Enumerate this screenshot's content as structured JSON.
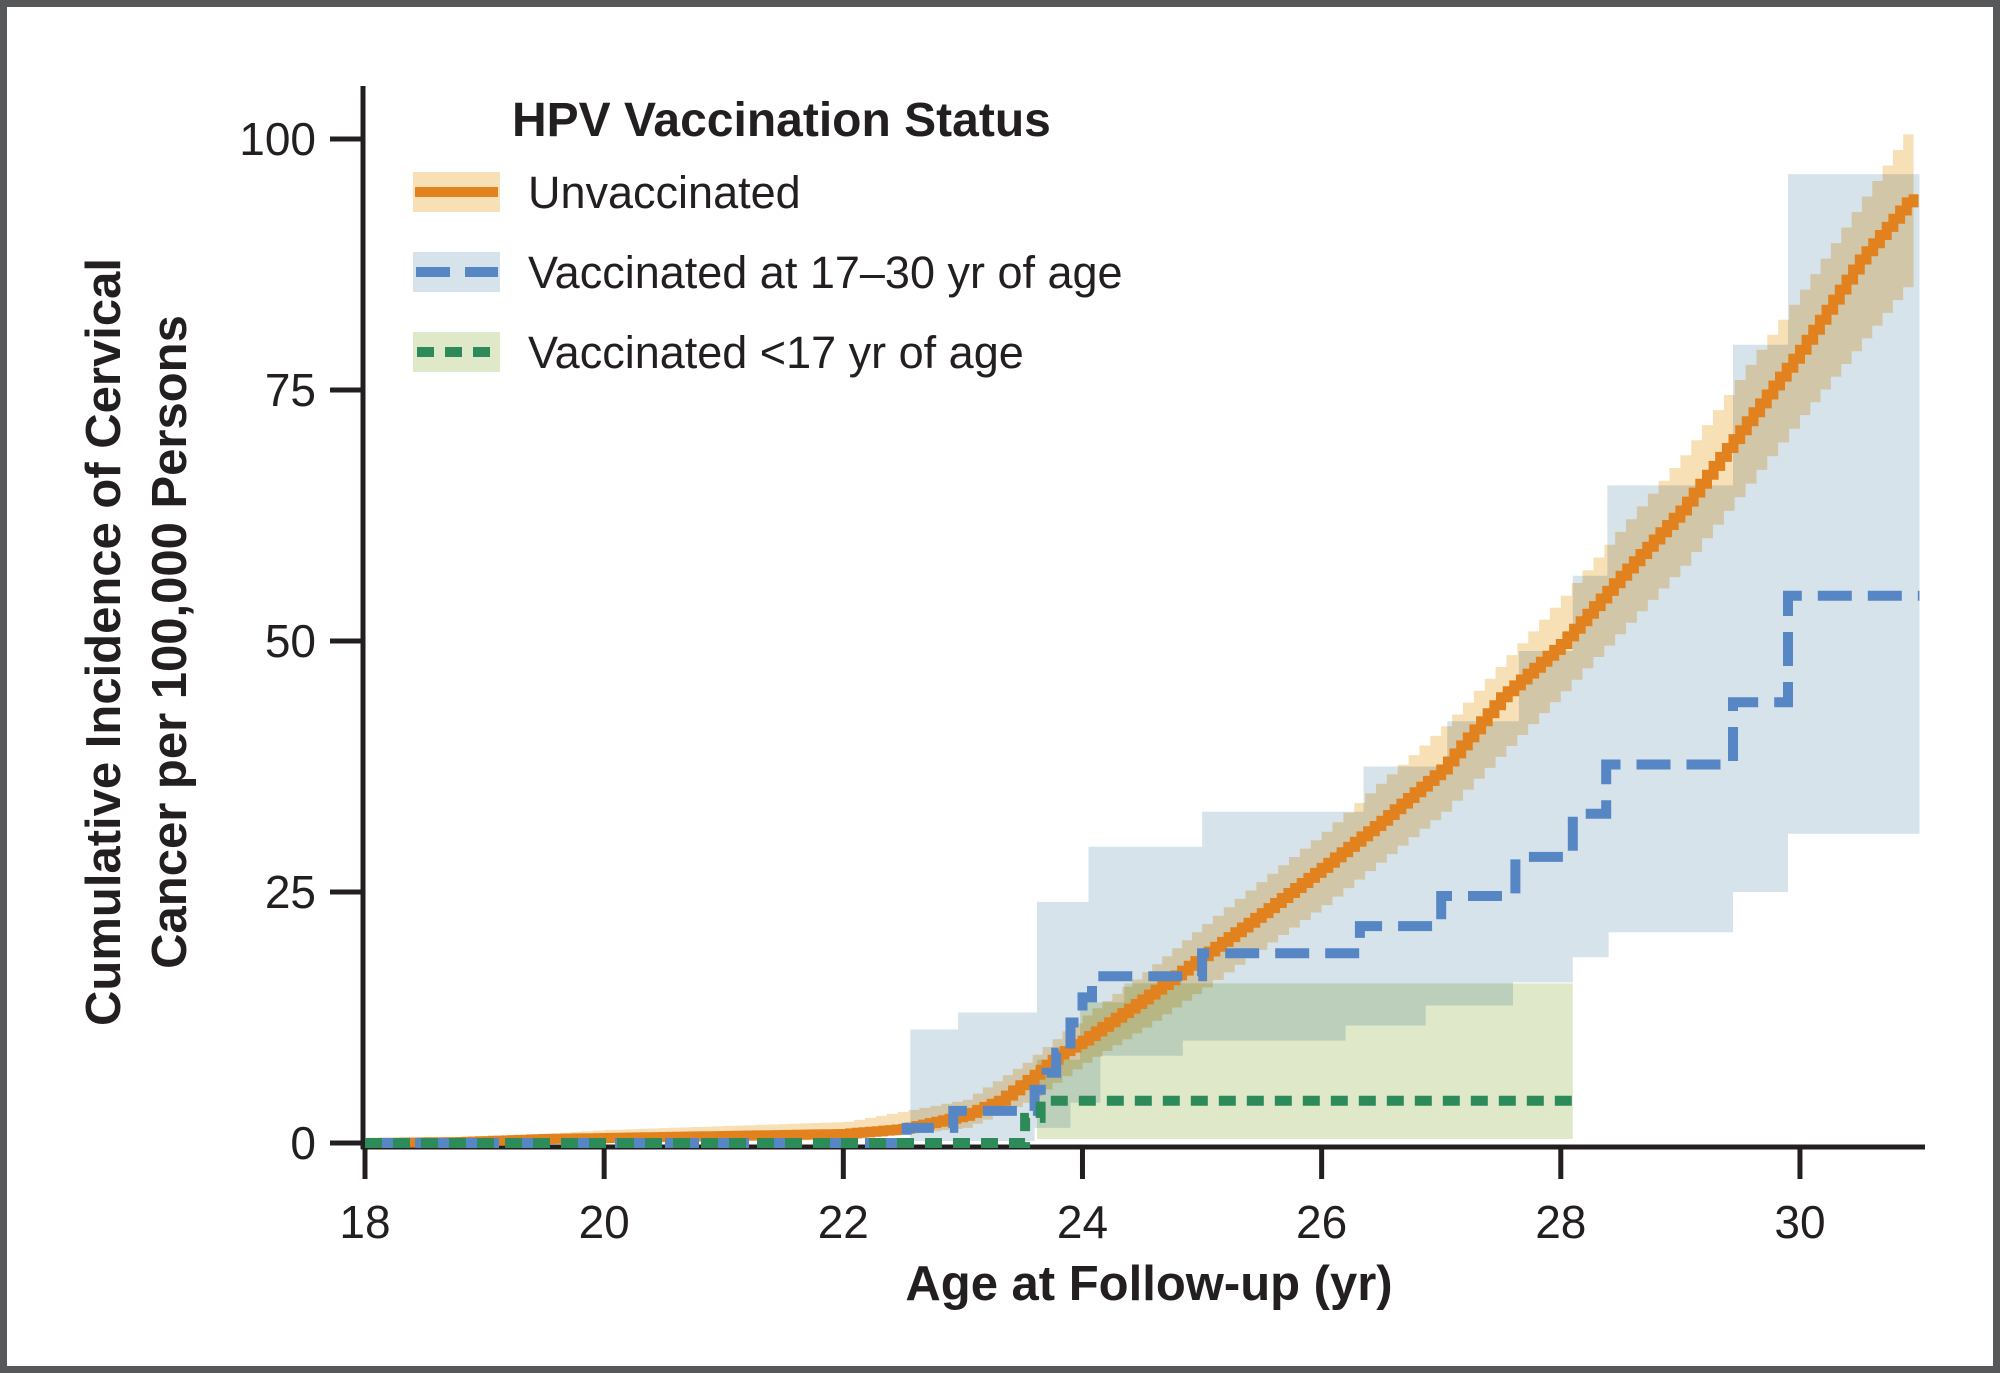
{
  "figure": {
    "legend": {
      "title": "HPV Vaccination Status",
      "items": [
        {
          "label": "Unvaccinated"
        },
        {
          "label": "Vaccinated at 17–30 yr of age"
        },
        {
          "label": "Vaccinated <17 yr of age"
        }
      ]
    },
    "x_axis": {
      "title": "Age at Follow-up (yr)",
      "ticks": [
        "18",
        "20",
        "22",
        "24",
        "26",
        "28",
        "30"
      ],
      "tick_values": [
        18,
        20,
        22,
        24,
        26,
        28,
        30
      ]
    },
    "y_axis": {
      "title_line1": "Cumulative Incidence of Cervical",
      "title_line2": "Cancer per 100,000 Persons",
      "ticks": [
        "0",
        "25",
        "50",
        "75",
        "100"
      ],
      "tick_values": [
        0,
        25,
        50,
        75,
        100
      ]
    }
  },
  "colors": {
    "text": "#231f20",
    "axis": "#231f20",
    "frame_border": "#57585a",
    "unvaccinated_line": "#e2821f",
    "unvaccinated_band": "#f8e0b6",
    "vaccinated_17_30_line": "#5786c5",
    "vaccinated_17_30_band": "#d7e3eb",
    "vaccinated_under17_line": "#2d8b59",
    "vaccinated_under17_band": "#dfe9ca"
  },
  "chart_data": {
    "type": "line",
    "title": "",
    "xlabel": "Age at Follow-up (yr)",
    "ylabel": "Cumulative Incidence of Cervical Cancer per 100,000 Persons",
    "xlim": [
      18,
      31
    ],
    "ylim": [
      0,
      100
    ],
    "grid": false,
    "legend_position": "top-left",
    "series": [
      {
        "name": "Unvaccinated",
        "render": "smooth-km",
        "line_style": "solid",
        "color_key": "unvaccinated_line",
        "band_key": "unvaccinated_band",
        "points": [
          [
            18,
            0
          ],
          [
            18.8,
            0.1
          ],
          [
            19.5,
            0.4
          ],
          [
            20,
            0.5
          ],
          [
            21,
            0.7
          ],
          [
            22,
            0.9
          ],
          [
            22.5,
            1.4
          ],
          [
            23,
            2.7
          ],
          [
            23.3,
            4.2
          ],
          [
            23.6,
            6.8
          ],
          [
            23.8,
            8.8
          ],
          [
            24,
            10.2
          ],
          [
            24.5,
            14.3
          ],
          [
            25,
            18.6
          ],
          [
            25.5,
            22.9
          ],
          [
            26,
            27.4
          ],
          [
            26.5,
            32.1
          ],
          [
            27,
            37.2
          ],
          [
            27.5,
            44.4
          ],
          [
            28,
            49.7
          ],
          [
            28.5,
            56.5
          ],
          [
            29,
            63
          ],
          [
            29.5,
            71
          ],
          [
            30,
            79
          ],
          [
            30.5,
            88
          ],
          [
            30.95,
            94.5
          ]
        ],
        "ci_upper": [
          [
            18.8,
            0.4
          ],
          [
            20,
            1.3
          ],
          [
            22,
            2.1
          ],
          [
            23,
            4.3
          ],
          [
            23.5,
            8
          ],
          [
            24,
            12.7
          ],
          [
            24.5,
            17
          ],
          [
            25,
            21.8
          ],
          [
            26,
            31
          ],
          [
            27,
            41.5
          ],
          [
            28,
            54.5
          ],
          [
            29,
            68.5
          ],
          [
            30,
            85
          ],
          [
            30.95,
            102
          ]
        ],
        "ci_lower": [
          [
            18.8,
            0.0
          ],
          [
            20,
            0.1
          ],
          [
            22,
            0.3
          ],
          [
            23,
            1.5
          ],
          [
            23.5,
            4
          ],
          [
            24,
            8
          ],
          [
            24.5,
            11.5
          ],
          [
            25,
            15.5
          ],
          [
            26,
            23.7
          ],
          [
            27,
            33
          ],
          [
            28,
            45
          ],
          [
            29,
            57.5
          ],
          [
            30,
            72.5
          ],
          [
            30.95,
            86.5
          ]
        ]
      },
      {
        "name": "Vaccinated at 17–30 yr of age",
        "render": "step",
        "line_style": "dashed",
        "color_key": "vaccinated_17_30_line",
        "band_key": "vaccinated_17_30_band",
        "points": [
          [
            18,
            0
          ],
          [
            22.53,
            1.5
          ],
          [
            22.92,
            3.2
          ],
          [
            23.6,
            5.3
          ],
          [
            23.7,
            7.0
          ],
          [
            23.78,
            9.0
          ],
          [
            23.9,
            12.0
          ],
          [
            24.0,
            14.5
          ],
          [
            24.08,
            16.6
          ],
          [
            25.0,
            18.9
          ],
          [
            26.32,
            21.6
          ],
          [
            27.0,
            24.6
          ],
          [
            27.62,
            28.5
          ],
          [
            28.1,
            32.8
          ],
          [
            28.38,
            37.7
          ],
          [
            29.44,
            43.9
          ],
          [
            29.9,
            54.5
          ],
          [
            31.0,
            54.5
          ]
        ],
        "ci_upper": [
          [
            22.56,
            11.3
          ],
          [
            22.96,
            13.0
          ],
          [
            23.62,
            24.0
          ],
          [
            24.05,
            29.5
          ],
          [
            25.0,
            33.0
          ],
          [
            26.35,
            37.5
          ],
          [
            27.05,
            42.0
          ],
          [
            27.65,
            49.0
          ],
          [
            28.1,
            56.5
          ],
          [
            28.39,
            65.5
          ],
          [
            29.44,
            79.5
          ],
          [
            29.9,
            96.5
          ],
          [
            31.0,
            96.5
          ]
        ],
        "ci_lower": [
          [
            22.56,
            0.2
          ],
          [
            23.6,
            1.5
          ],
          [
            23.9,
            4.0
          ],
          [
            24.15,
            8.7
          ],
          [
            24.84,
            10.2
          ],
          [
            26.2,
            11.7
          ],
          [
            26.87,
            13.7
          ],
          [
            27.6,
            16.0
          ],
          [
            28.1,
            18.5
          ],
          [
            28.4,
            21.0
          ],
          [
            29.44,
            25.0
          ],
          [
            29.9,
            30.8
          ],
          [
            31.0,
            30.8
          ]
        ]
      },
      {
        "name": "Vaccinated <17 yr of age",
        "render": "step",
        "line_style": "dotted",
        "color_key": "vaccinated_under17_line",
        "band_key": "vaccinated_under17_band",
        "points": [
          [
            18,
            0
          ],
          [
            23.52,
            2.5
          ],
          [
            23.65,
            4.2
          ],
          [
            28.1,
            4.2
          ]
        ],
        "ci_upper": [
          [
            23.62,
            8.3
          ],
          [
            23.98,
            14.0
          ],
          [
            24.35,
            15.9
          ],
          [
            28.1,
            15.9
          ]
        ],
        "ci_lower": [
          [
            23.62,
            0.4
          ],
          [
            28.1,
            0.4
          ]
        ]
      }
    ]
  }
}
